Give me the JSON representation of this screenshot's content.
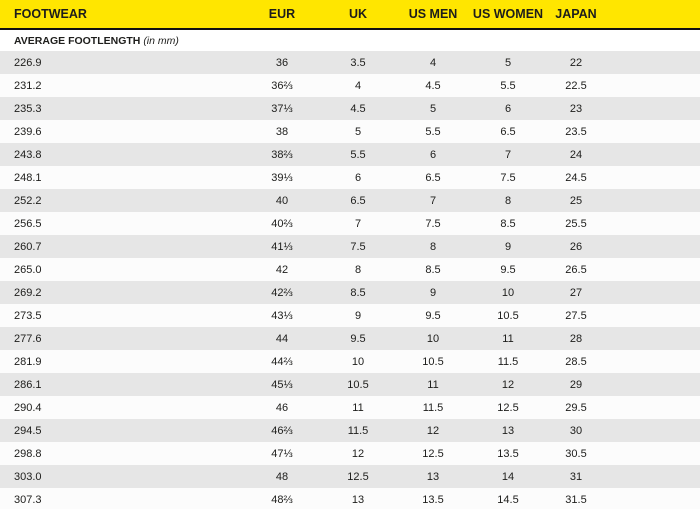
{
  "colors": {
    "header_bg": "#ffe600",
    "shaded_row_bg": "#e6e6e6",
    "plain_row_bg": "#fcfcfc",
    "divider": "#111111",
    "text": "#1d1d1b"
  },
  "table": {
    "headers": [
      "FOOTWEAR",
      "EUR",
      "UK",
      "US MEN",
      "US WOMEN",
      "JAPAN"
    ],
    "subheader_title": "AVERAGE FOOTLENGTH",
    "subheader_unit": "(in mm)",
    "column_keys": [
      "footwear-mm",
      "eur",
      "uk",
      "us-men",
      "us-women",
      "japan"
    ],
    "rows": [
      [
        "226.9",
        "36",
        "3.5",
        "4",
        "5",
        "22"
      ],
      [
        "231.2",
        "36⅔",
        "4",
        "4.5",
        "5.5",
        "22.5"
      ],
      [
        "235.3",
        "37⅓",
        "4.5",
        "5",
        "6",
        "23"
      ],
      [
        "239.6",
        "38",
        "5",
        "5.5",
        "6.5",
        "23.5"
      ],
      [
        "243.8",
        "38⅔",
        "5.5",
        "6",
        "7",
        "24"
      ],
      [
        "248.1",
        "39⅓",
        "6",
        "6.5",
        "7.5",
        "24.5"
      ],
      [
        "252.2",
        "40",
        "6.5",
        "7",
        "8",
        "25"
      ],
      [
        "256.5",
        "40⅔",
        "7",
        "7.5",
        "8.5",
        "25.5"
      ],
      [
        "260.7",
        "41⅓",
        "7.5",
        "8",
        "9",
        "26"
      ],
      [
        "265.0",
        "42",
        "8",
        "8.5",
        "9.5",
        "26.5"
      ],
      [
        "269.2",
        "42⅔",
        "8.5",
        "9",
        "10",
        "27"
      ],
      [
        "273.5",
        "43⅓",
        "9",
        "9.5",
        "10.5",
        "27.5"
      ],
      [
        "277.6",
        "44",
        "9.5",
        "10",
        "11",
        "28"
      ],
      [
        "281.9",
        "44⅔",
        "10",
        "10.5",
        "11.5",
        "28.5"
      ],
      [
        "286.1",
        "45⅓",
        "10.5",
        "11",
        "12",
        "29"
      ],
      [
        "290.4",
        "46",
        "11",
        "11.5",
        "12.5",
        "29.5"
      ],
      [
        "294.5",
        "46⅔",
        "11.5",
        "12",
        "13",
        "30"
      ],
      [
        "298.8",
        "47⅓",
        "12",
        "12.5",
        "13.5",
        "30.5"
      ],
      [
        "303.0",
        "48",
        "12.5",
        "13",
        "14",
        "31"
      ],
      [
        "307.3",
        "48⅔",
        "13",
        "13.5",
        "14.5",
        "31.5"
      ]
    ]
  }
}
